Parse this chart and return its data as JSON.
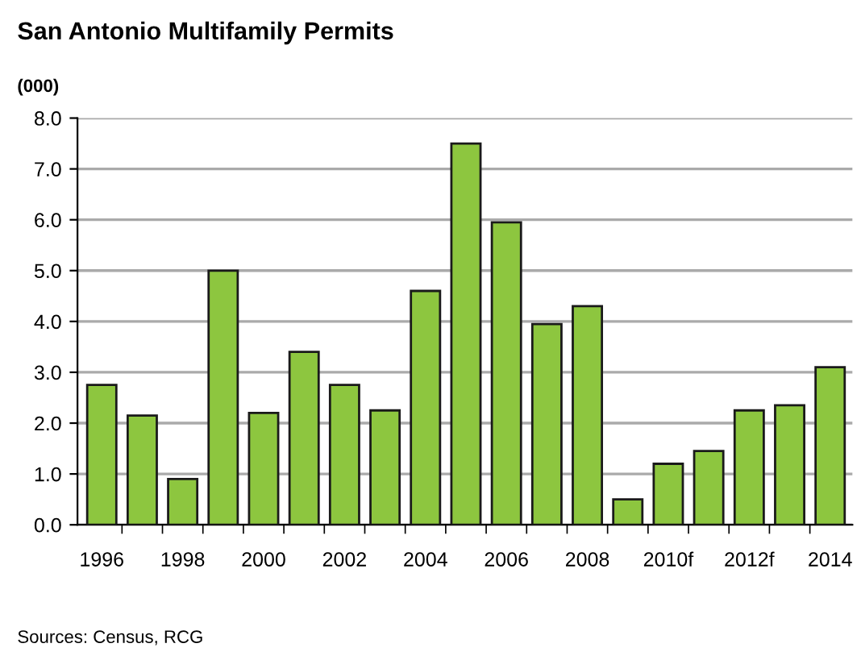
{
  "chart_data": {
    "type": "bar",
    "title": "San Antonio Multifamily Permits",
    "ylabel": "(000)",
    "categories": [
      "1996",
      null,
      "1998",
      null,
      "2000",
      null,
      "2002",
      null,
      "2004",
      null,
      "2006",
      null,
      "2008",
      null,
      "2010f",
      null,
      "2012f",
      null,
      "2014"
    ],
    "values": [
      2.75,
      2.15,
      0.9,
      5.0,
      2.2,
      3.4,
      2.75,
      2.25,
      4.6,
      7.5,
      5.95,
      3.95,
      4.3,
      0.5,
      1.2,
      1.45,
      2.25,
      2.35,
      3.1
    ],
    "color": "#8dc63f",
    "ylim": [
      0,
      8
    ],
    "yticks": [
      {
        "value": 0,
        "label": "0.0"
      },
      {
        "value": 1,
        "label": "1.0"
      },
      {
        "value": 2,
        "label": "2.0"
      },
      {
        "value": 3,
        "label": "3.0"
      },
      {
        "value": 4,
        "label": "4.0"
      },
      {
        "value": 5,
        "label": "5.0"
      },
      {
        "value": 6,
        "label": "6.0"
      },
      {
        "value": 7,
        "label": "7.0"
      },
      {
        "value": 8,
        "label": "8.0"
      }
    ],
    "grid": "y",
    "legend": false,
    "annotations": [
      "Sources: Census, RCG"
    ]
  }
}
